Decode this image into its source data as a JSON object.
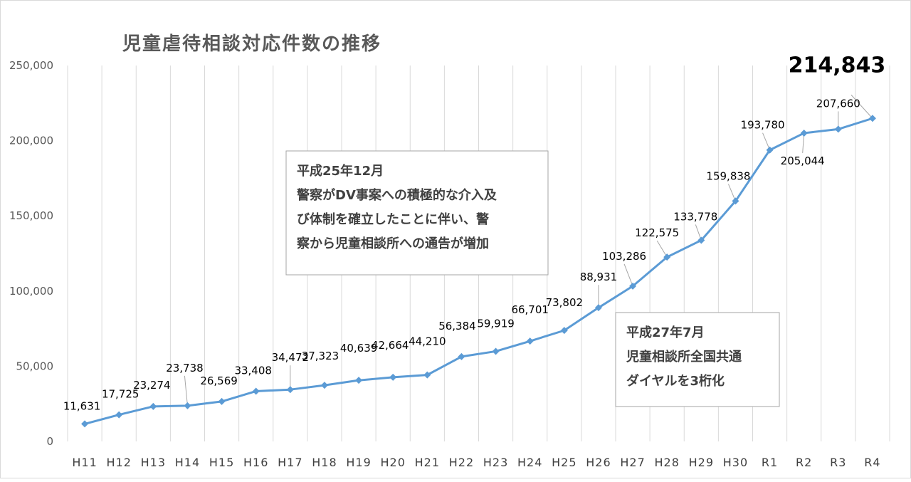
{
  "chart_data": {
    "type": "line",
    "title": "児童虐待相談対応件数の推移",
    "categories": [
      "H11",
      "H12",
      "H13",
      "H14",
      "H15",
      "H16",
      "H17",
      "H18",
      "H19",
      "H20",
      "H21",
      "H22",
      "H23",
      "H24",
      "H25",
      "H26",
      "H27",
      "H28",
      "H29",
      "H30",
      "R1",
      "R2",
      "R3",
      "R4"
    ],
    "values": [
      11631,
      17725,
      23274,
      23738,
      26569,
      33408,
      34472,
      37323,
      40639,
      42664,
      44210,
      56384,
      59919,
      66701,
      73802,
      88931,
      103286,
      122575,
      133778,
      159838,
      193780,
      205044,
      207660,
      214843
    ],
    "data_labels": [
      "11,631",
      "17,725",
      "23,274",
      "23,738",
      "26,569",
      "33,408",
      "34,472",
      "37,323",
      "40,639",
      "42,664",
      "44,210",
      "56,384",
      "59,919",
      "66,701",
      "73,802",
      "88,931",
      "103,286",
      "122,575",
      "133,778",
      "159,838",
      "193,780",
      "205,044",
      "207,660",
      "214,843"
    ],
    "y_ticks": [
      0,
      50000,
      100000,
      150000,
      200000,
      250000
    ],
    "y_tick_labels": [
      "0",
      "50,000",
      "100,000",
      "150,000",
      "200,000",
      "250,000"
    ],
    "ylim": [
      0,
      250000
    ],
    "xlabel": "",
    "ylabel": "",
    "grid": "vertical",
    "legend": "none",
    "colors": {
      "line": "#5B9BD5",
      "grid": "#D9D9D9",
      "text": "#595959"
    },
    "annotations": [
      {
        "id": "note1",
        "lines": [
          "平成25年12月",
          "警察がDV事案への積極的な介入及",
          "び体制を確立したことに伴い、警",
          "察から児童相談所への通告が増加"
        ]
      },
      {
        "id": "note2",
        "lines": [
          "平成27年7月",
          "児童相談所全国共通",
          "ダイヤルを3桁化"
        ]
      }
    ]
  }
}
